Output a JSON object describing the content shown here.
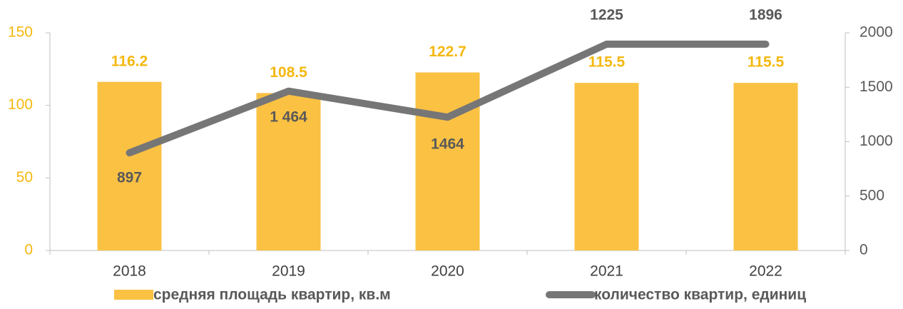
{
  "chart_data": {
    "type": "bar-line",
    "categories": [
      "2018",
      "2019",
      "2020",
      "2021",
      "2022"
    ],
    "series": [
      {
        "name": "средняя площадь квартир, кв.м",
        "type": "bar",
        "color": "#fbc143",
        "label_color": "#f5b80f",
        "values": [
          116.2,
          108.5,
          122.7,
          115.5,
          115.5
        ]
      },
      {
        "name": "количество квартир, единиц",
        "type": "line",
        "axis": "y2",
        "color": "#767676",
        "values": [
          897,
          1464,
          1225,
          1896,
          1896
        ]
      }
    ],
    "annotations": [
      "897",
      "1 464",
      "1464",
      "1225",
      "1896"
    ],
    "ylim": [
      0,
      150
    ],
    "yticks": [
      0,
      50,
      100,
      150
    ],
    "y2lim": [
      0,
      2000
    ],
    "y2ticks": [
      0,
      500,
      1000,
      1500,
      2000
    ],
    "grid": false
  }
}
